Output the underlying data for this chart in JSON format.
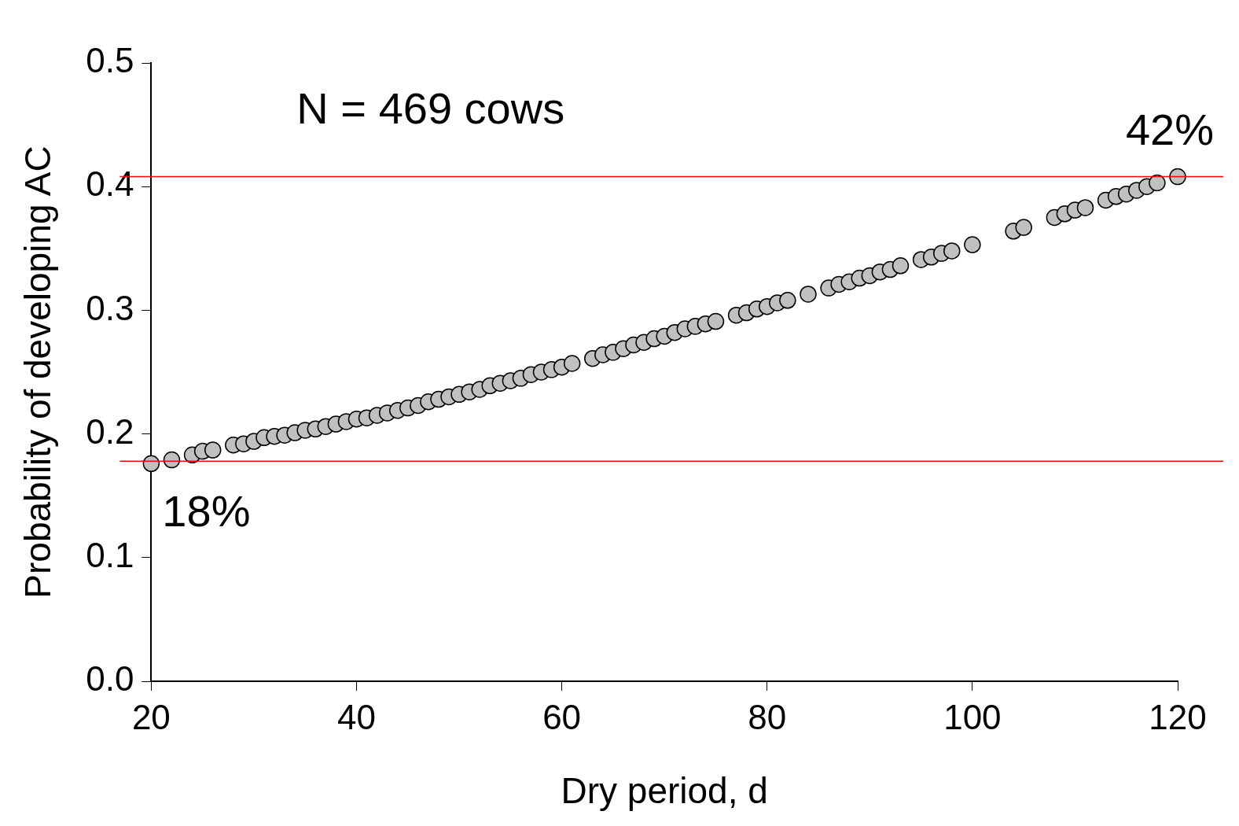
{
  "chart_data": {
    "type": "scatter",
    "xlabel": "Dry period, d",
    "ylabel": "Probability of developing AC",
    "x": [
      20,
      22,
      24,
      25,
      26,
      28,
      29,
      30,
      31,
      32,
      33,
      34,
      35,
      36,
      37,
      38,
      39,
      40,
      41,
      42,
      43,
      44,
      45,
      46,
      47,
      48,
      49,
      50,
      51,
      52,
      53,
      54,
      55,
      56,
      57,
      58,
      59,
      60,
      61,
      63,
      64,
      65,
      66,
      67,
      68,
      69,
      70,
      71,
      72,
      73,
      74,
      75,
      77,
      78,
      79,
      80,
      81,
      82,
      84,
      86,
      87,
      88,
      89,
      90,
      91,
      92,
      93,
      95,
      96,
      97,
      98,
      100,
      104,
      105,
      108,
      109,
      110,
      111,
      113,
      114,
      115,
      116,
      117,
      118,
      120
    ],
    "values": [
      0.176,
      0.179,
      0.183,
      0.186,
      0.187,
      0.191,
      0.192,
      0.194,
      0.197,
      0.198,
      0.199,
      0.201,
      0.203,
      0.204,
      0.206,
      0.208,
      0.21,
      0.212,
      0.213,
      0.215,
      0.217,
      0.219,
      0.221,
      0.223,
      0.226,
      0.228,
      0.23,
      0.232,
      0.234,
      0.236,
      0.239,
      0.241,
      0.243,
      0.245,
      0.248,
      0.25,
      0.252,
      0.254,
      0.257,
      0.261,
      0.264,
      0.266,
      0.269,
      0.272,
      0.274,
      0.277,
      0.279,
      0.282,
      0.285,
      0.287,
      0.289,
      0.291,
      0.296,
      0.298,
      0.301,
      0.303,
      0.306,
      0.308,
      0.313,
      0.318,
      0.321,
      0.323,
      0.326,
      0.328,
      0.331,
      0.333,
      0.336,
      0.341,
      0.343,
      0.346,
      0.348,
      0.353,
      0.364,
      0.367,
      0.375,
      0.378,
      0.381,
      0.383,
      0.389,
      0.392,
      0.394,
      0.397,
      0.4,
      0.403,
      0.408
    ],
    "color": "#c0c0c0",
    "marker": "circle",
    "xlim": [
      20,
      120
    ],
    "xticks": [
      20,
      40,
      60,
      80,
      100,
      120
    ],
    "ylim": [
      0,
      0.5
    ],
    "yticks": [
      {
        "value": 0,
        "label": "0.0"
      },
      0.1,
      0.2,
      0.3,
      0.4,
      0.5
    ],
    "ref_lines": [
      {
        "axis": "y",
        "value": 0.408,
        "color": "#ff0000"
      },
      {
        "axis": "y",
        "value": 0.178,
        "color": "#ff0000"
      }
    ],
    "annotations": [
      "N = 469 cows",
      {
        "text": "42%",
        "x": 120,
        "y": 0.408
      },
      {
        "text": "18%",
        "x": 20,
        "y": 0.176
      }
    ],
    "grid": false,
    "legend": false
  }
}
